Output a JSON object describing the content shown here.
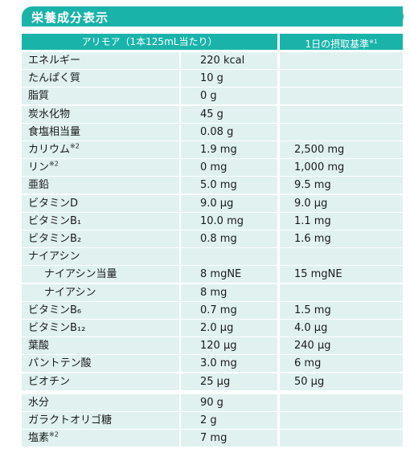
{
  "title": "栄養成分表示",
  "header": {
    "product": "アリモア（1本125mL当たり）",
    "standard_prefix": "1日の摂取基準",
    "standard_note": "※1"
  },
  "rows": [
    {
      "name": "エネルギー",
      "val": "220 kcal",
      "std": ""
    },
    {
      "name": "たんぱく質",
      "val": "10 g",
      "std": ""
    },
    {
      "name": "脂質",
      "val": "0 g",
      "std": ""
    },
    {
      "name": "炭水化物",
      "val": "45 g",
      "std": ""
    },
    {
      "name": "食塩相当量",
      "val": "0.08 g",
      "std": ""
    },
    {
      "name": "カリウム",
      "note": "※2",
      "val": "1.9 mg",
      "std": "2,500 mg"
    },
    {
      "name": "リン",
      "note": "※2",
      "val": "0 mg",
      "std": "1,000 mg"
    },
    {
      "name": "亜鉛",
      "val": "5.0 mg",
      "std": "9.5 mg"
    },
    {
      "name": "ビタミンD",
      "val": "9.0 μg",
      "std": "9.0 μg"
    },
    {
      "name": "ビタミンB₁",
      "val": "10.0 mg",
      "std": "1.1 mg"
    },
    {
      "name": "ビタミンB₂",
      "val": "0.8 mg",
      "std": "1.6 mg"
    },
    {
      "name": "ナイアシン",
      "val": "",
      "std": ""
    },
    {
      "name": "ナイアシン当量",
      "indent": true,
      "val": "8 mgNE",
      "std": "15 mgNE"
    },
    {
      "name": "ナイアシン",
      "indent": true,
      "val": "8 mg",
      "std": ""
    },
    {
      "name": "ビタミンB₆",
      "val": "0.7 mg",
      "std": "1.5 mg"
    },
    {
      "name": "ビタミンB₁₂",
      "val": "2.0 μg",
      "std": "4.0 μg"
    },
    {
      "name": "葉酸",
      "val": "120 μg",
      "std": "240 μg"
    },
    {
      "name": "パントテン酸",
      "val": "3.0 mg",
      "std": "6 mg"
    },
    {
      "name": "ビオチン",
      "val": "25 μg",
      "std": "50 μg"
    },
    {
      "name": "水分",
      "val": "90 g",
      "std": ""
    },
    {
      "name": "ガラクトオリゴ糖",
      "val": "2 g",
      "std": ""
    },
    {
      "name": "塩素",
      "note": "※2",
      "val": "7 mg",
      "std": ""
    }
  ],
  "colors": {
    "accent": "#19b3aa",
    "shade": "#e0f1f0"
  }
}
